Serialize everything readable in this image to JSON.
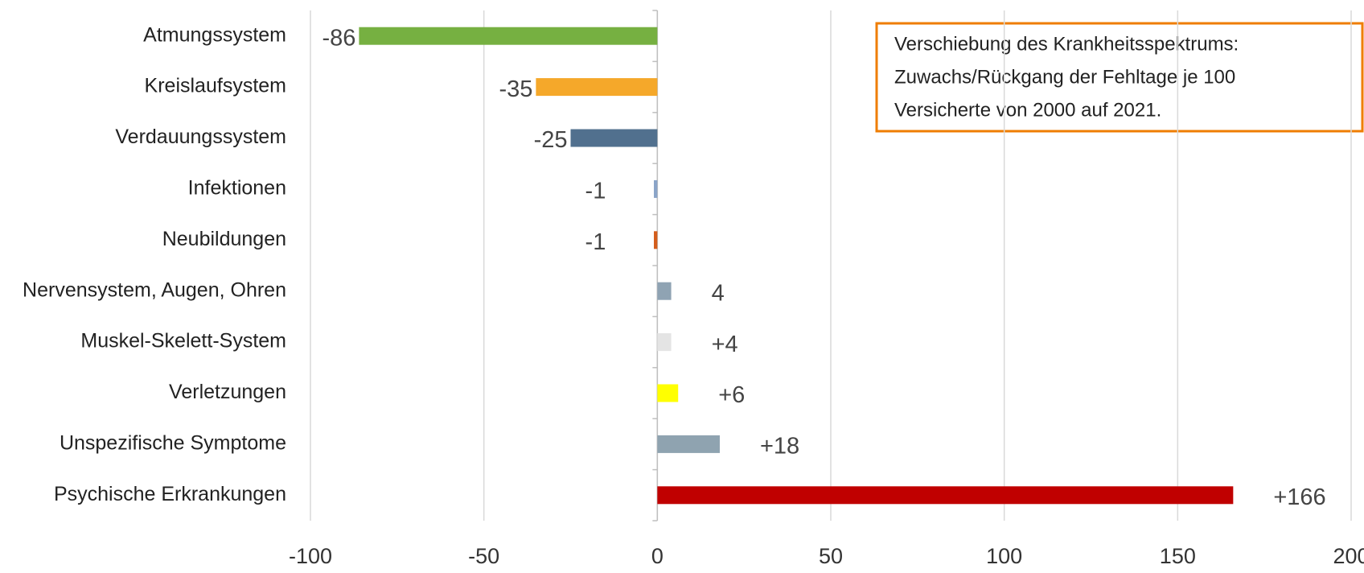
{
  "chart_data": {
    "type": "bar",
    "orientation": "horizontal",
    "categories": [
      "Atmungssystem",
      "Kreislaufsystem",
      "Verdauungssystem",
      "Infektionen",
      "Neubildungen",
      "Nervensystem, Augen, Ohren",
      "Muskel-Skelett-System",
      "Verletzungen",
      "Unspezifische Symptome",
      "Psychische Erkrankungen"
    ],
    "values": [
      -86,
      -35,
      -25,
      -1,
      -1,
      4,
      4,
      6,
      18,
      166
    ],
    "value_labels": [
      "-86",
      "-35",
      "-25",
      "-1",
      "-1",
      "4",
      "+4",
      "+6",
      "+18",
      "+166"
    ],
    "colors": [
      "#76b041",
      "#f5a82a",
      "#51708e",
      "#8aa4c8",
      "#d45d1c",
      "#8fa3b3",
      "#e4e4e4",
      "#ffff00",
      "#8fa3b0",
      "#c00000"
    ],
    "xlim": [
      -100,
      200
    ],
    "xticks": [
      -100,
      -50,
      0,
      50,
      100,
      150,
      200
    ],
    "grid": true,
    "annotation": [
      "Verschiebung des Krankheitsspektrums:",
      "Zuwachs/Rückgang der Fehltage je 100",
      "Versicherte von 2000 auf 2021."
    ]
  }
}
